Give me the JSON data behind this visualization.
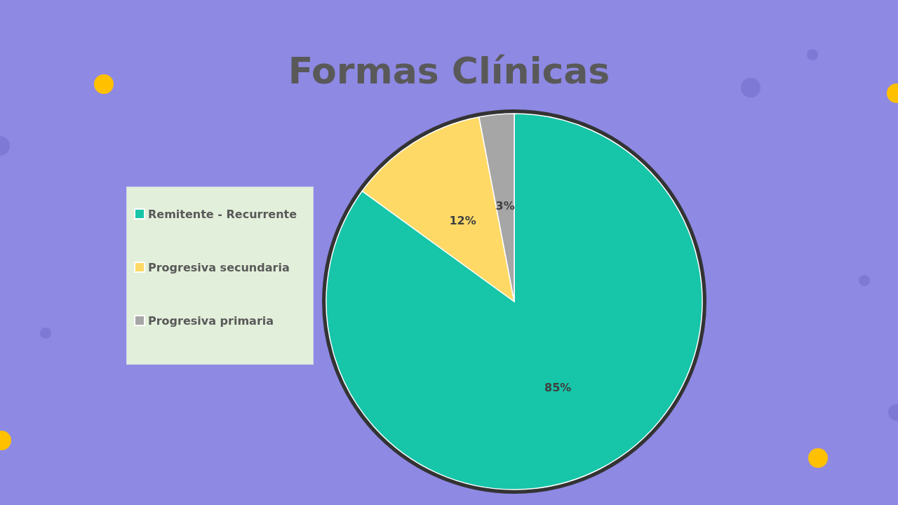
{
  "chart_data": {
    "type": "pie",
    "title": "Formas Clínicas",
    "categories": [
      "Remitente - Recurrente",
      "Progresiva secundaria",
      "Progresiva primaria"
    ],
    "values": [
      85,
      12,
      3
    ],
    "colors": [
      "#17c5a8",
      "#ffd966",
      "#a6a6a6"
    ],
    "value_labels": [
      "85%",
      "12%",
      "3%"
    ],
    "legend": "left"
  }
}
